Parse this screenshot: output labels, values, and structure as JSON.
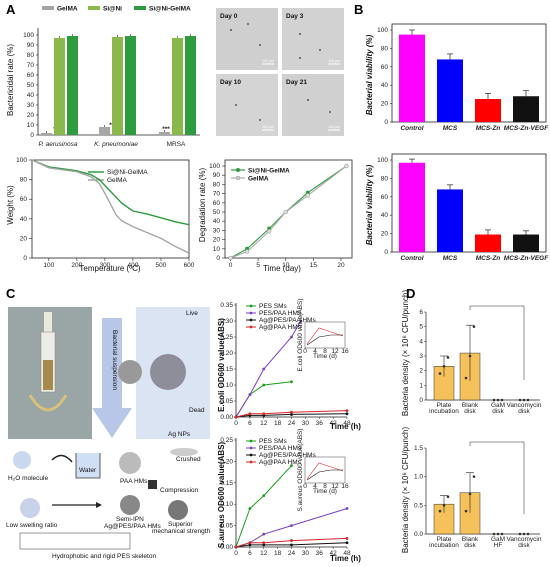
{
  "panels": {
    "A": "A",
    "B": "B",
    "C": "C",
    "D": "D"
  },
  "A": {
    "bactericidal": {
      "ylabel": "Bactericidal rate (%)",
      "legend": [
        "GelMA",
        "Si@Ni",
        "Si@Ni-GelMA"
      ],
      "colors": [
        "#a6a6a6",
        "#8ab84a",
        "#2e9b3f"
      ],
      "categories": [
        "P. aerusinosa",
        "K. pneumoniae",
        "MRSA"
      ],
      "yticks": [
        "0",
        "10",
        "20",
        "30",
        "40",
        "50",
        "60",
        "70",
        "80",
        "90",
        "100"
      ],
      "stars": [
        "***",
        "***",
        "***"
      ],
      "values": [
        [
          2,
          97,
          99
        ],
        [
          8,
          98,
          99
        ],
        [
          3,
          97,
          99
        ]
      ]
    },
    "micrographs": [
      "Day 0",
      "Day 3",
      "Day 10",
      "Day 21"
    ],
    "scale_bar": "100 μm",
    "tga": {
      "ylabel": "Weight (%)",
      "xlabel": "Temperature (ºC)",
      "legend": [
        "Si@Ni-GelMA",
        "GelMA"
      ],
      "xticks": [
        "100",
        "200",
        "300",
        "400",
        "500",
        "600"
      ],
      "yticks": [
        "0",
        "20",
        "40",
        "60",
        "80",
        "100"
      ]
    },
    "degradation": {
      "ylabel": "Degradation rate (%)",
      "xlabel": "Time (day)",
      "legend": [
        "Si@Ni-GelMA",
        "GelMA"
      ],
      "xticks": [
        "0",
        "5",
        "10",
        "15",
        "20"
      ],
      "yticks": [
        "0",
        "10",
        "20",
        "30",
        "40",
        "50",
        "60",
        "70",
        "80",
        "90",
        "100"
      ]
    }
  },
  "B": {
    "ylabel": "Bacterial viability (%)",
    "categories": [
      "Control",
      "MCS",
      "MCS-Zn",
      "MCS-Zn-VEGF"
    ],
    "yticks": [
      "0",
      "20",
      "40",
      "60",
      "80",
      "100"
    ],
    "colors": [
      "#ff00ff",
      "#0000ff",
      "#ff0000",
      "#111111"
    ]
  },
  "C": {
    "labels": {
      "bacterial_suspension": "Bacterial suspension",
      "live": "Live",
      "dead": "Dead",
      "ag_nps": "Ag NPs",
      "h2o": "H₂O molecule",
      "water": "Water",
      "paa_hms": "PAA HMs",
      "crushed": "Crushed",
      "compression": "Compression",
      "semi_ipn": "Semi-IPN",
      "semi_ipn2": "Ag@PES/PAA HMs",
      "low_swelling": "Low swelling ratio",
      "superior": "Superior",
      "superior2": "mechanical strength",
      "hydrophobic": "Hydrophobic and rigid PES skeleton"
    },
    "legend": [
      "PES SMs",
      "PES/PAA HMs",
      "Ag@PES/PAA HMs",
      "Ag@PAA HMs"
    ],
    "colors": [
      "#1a9e1a",
      "#7b3fc4",
      "#111111",
      "#d62728"
    ],
    "xlabel": "Time (h)",
    "xticks": [
      "0",
      "6",
      "12",
      "18",
      "24",
      "30",
      "36",
      "42",
      "48"
    ],
    "inset_xlabel": "Time (d)",
    "inset_xticks": [
      "0",
      "4",
      "8",
      "12",
      "16"
    ],
    "ecoli": {
      "ylabel": "E.coli OD600 value(ABS)",
      "yticks": [
        "0.00",
        "0.05",
        "0.10",
        "0.15",
        "0.20",
        "0.25",
        "0.30",
        "0.35"
      ],
      "inset_ylabel": "E.coli OD600 value(ABS)"
    },
    "saureus": {
      "ylabel": "S.aureus OD600 value(ABS)",
      "yticks": [
        "0.00",
        "0.05",
        "0.10",
        "0.15",
        "0.20",
        "0.25"
      ],
      "inset_ylabel": "S.aureus OD600 value(ABS)"
    }
  },
  "D": {
    "ylabel": "Bacteria density (× 10⁶ CFU/punch)",
    "color": "#f5c15a",
    "top": {
      "categories": [
        "Plate incubation",
        "Blank disk",
        "GaM disk",
        "Vancomycin disk"
      ],
      "yticks": [
        "0",
        "1",
        "2",
        "3",
        "4",
        "5",
        "6"
      ]
    },
    "bottom": {
      "categories": [
        "Plate incubation",
        "Blank disk",
        "GaM HF",
        "Vancomycin disk"
      ],
      "yticks": [
        "0.0",
        "0.5",
        "1.0",
        "1.5"
      ]
    }
  },
  "chart_data": [
    {
      "type": "bar",
      "id": "A-bactericidal",
      "categories": [
        "P. aerusinosa",
        "K. pneumoniae",
        "MRSA"
      ],
      "series": [
        {
          "name": "GelMA",
          "values": [
            2,
            8,
            3
          ]
        },
        {
          "name": "Si@Ni",
          "values": [
            97,
            98,
            97
          ]
        },
        {
          "name": "Si@Ni-GelMA",
          "values": [
            99,
            99,
            99
          ]
        }
      ],
      "ylabel": "Bactericidal rate (%)",
      "ylim": [
        0,
        100
      ]
    },
    {
      "type": "line",
      "id": "A-tga",
      "xlabel": "Temperature (ºC)",
      "ylabel": "Weight (%)",
      "xlim": [
        40,
        600
      ],
      "ylim": [
        0,
        100
      ],
      "series": [
        {
          "name": "Si@Ni-GelMA",
          "x": [
            40,
            100,
            150,
            200,
            250,
            280,
            300,
            320,
            340,
            360,
            400,
            450,
            500,
            550,
            600
          ],
          "y": [
            100,
            93,
            91,
            89,
            85,
            80,
            74,
            68,
            62,
            56,
            48,
            45,
            41,
            37,
            34
          ]
        },
        {
          "name": "GelMA",
          "x": [
            40,
            100,
            150,
            200,
            250,
            280,
            300,
            320,
            340,
            360,
            400,
            450,
            500,
            550,
            600
          ],
          "y": [
            100,
            92,
            90,
            88,
            83,
            76,
            66,
            55,
            44,
            38,
            32,
            26,
            20,
            12,
            5
          ]
        }
      ]
    },
    {
      "type": "line",
      "id": "A-degradation",
      "xlabel": "Time (day)",
      "ylabel": "Degradation rate (%)",
      "xlim": [
        0,
        22
      ],
      "ylim": [
        0,
        100
      ],
      "series": [
        {
          "name": "Si@Ni-GelMA",
          "x": [
            0,
            3,
            7,
            10,
            14,
            21
          ],
          "y": [
            0,
            10,
            32,
            50,
            71,
            100
          ]
        },
        {
          "name": "GelMA",
          "x": [
            0,
            3,
            7,
            10,
            14,
            21
          ],
          "y": [
            0,
            7,
            29,
            50,
            68,
            100
          ]
        }
      ]
    },
    {
      "type": "bar",
      "id": "B-top",
      "categories": [
        "Control",
        "MCS",
        "MCS-Zn",
        "MCS-Zn-VEGF"
      ],
      "values": [
        95,
        68,
        25,
        28
      ],
      "errors": [
        5,
        6,
        6,
        6
      ],
      "ylabel": "Bacterial viability (%)",
      "ylim": [
        0,
        100
      ]
    },
    {
      "type": "bar",
      "id": "B-bottom",
      "categories": [
        "Control",
        "MCS",
        "MCS-Zn",
        "MCS-Zn-VEGF"
      ],
      "values": [
        97,
        68,
        19,
        19
      ],
      "errors": [
        4,
        5,
        5,
        4
      ],
      "ylabel": "Bacterial viability (%)",
      "ylim": [
        0,
        100
      ]
    },
    {
      "type": "line",
      "id": "C-ecoli",
      "xlabel": "Time (h)",
      "ylabel": "E.coli OD600 value(ABS)",
      "xlim": [
        0,
        48
      ],
      "ylim": [
        0,
        0.35
      ],
      "x": [
        0,
        6,
        12,
        24,
        48
      ],
      "series": [
        {
          "name": "PES SMs",
          "x": [
            0,
            6,
            12,
            24
          ],
          "y": [
            0,
            0.07,
            0.1,
            0.11
          ]
        },
        {
          "name": "PES/PAA HMs",
          "x": [
            0,
            6,
            12,
            24,
            28
          ],
          "y": [
            0,
            0.07,
            0.15,
            0.25,
            0.3
          ]
        },
        {
          "name": "Ag@PES/PAA HMs",
          "x": [
            0,
            6,
            12,
            24,
            48
          ],
          "y": [
            0,
            0.005,
            0.005,
            0.008,
            0.01
          ]
        },
        {
          "name": "Ag@PAA HMs",
          "x": [
            0,
            6,
            12,
            24,
            48
          ],
          "y": [
            0,
            0.01,
            0.01,
            0.015,
            0.02
          ]
        }
      ]
    },
    {
      "type": "line",
      "id": "C-saureus",
      "xlabel": "Time (h)",
      "ylabel": "S.aureus OD600 value(ABS)",
      "xlim": [
        0,
        48
      ],
      "ylim": [
        0,
        0.25
      ],
      "series": [
        {
          "name": "PES SMs",
          "x": [
            0,
            6,
            12,
            24
          ],
          "y": [
            0,
            0.09,
            0.12,
            0.19
          ]
        },
        {
          "name": "PES/PAA HMs",
          "x": [
            0,
            6,
            12,
            24,
            48
          ],
          "y": [
            0,
            0.01,
            0.03,
            0.05,
            0.09
          ]
        },
        {
          "name": "Ag@PES/PAA HMs",
          "x": [
            0,
            6,
            12,
            24,
            48
          ],
          "y": [
            0,
            0.005,
            0.005,
            0.005,
            0.01
          ]
        },
        {
          "name": "Ag@PAA HMs",
          "x": [
            0,
            6,
            12,
            24,
            48
          ],
          "y": [
            0,
            0.01,
            0.01,
            0.015,
            0.02
          ]
        }
      ]
    },
    {
      "type": "bar",
      "id": "D-top",
      "categories": [
        "Plate incubation",
        "Blank disk",
        "GaM disk",
        "Vancomycin disk"
      ],
      "values": [
        2.3,
        3.2,
        0,
        0
      ],
      "errors": [
        0.7,
        1.9,
        0,
        0
      ],
      "points": [
        [
          1.8,
          2.3,
          2.9
        ],
        [
          1.5,
          3.0,
          5.0
        ],
        [
          0,
          0,
          0
        ],
        [
          0,
          0,
          0
        ]
      ],
      "ylim": [
        0,
        6
      ]
    },
    {
      "type": "bar",
      "id": "D-bottom",
      "categories": [
        "Plate incubation",
        "Blank disk",
        "GaM HF",
        "Vancomycin disk"
      ],
      "values": [
        0.52,
        0.72,
        0,
        0
      ],
      "errors": [
        0.15,
        0.35,
        0,
        0
      ],
      "points": [
        [
          0.4,
          0.5,
          0.65
        ],
        [
          0.4,
          0.7,
          1.0
        ],
        [
          0,
          0,
          0
        ],
        [
          0,
          0,
          0
        ]
      ],
      "ylim": [
        0,
        1.5
      ]
    }
  ]
}
